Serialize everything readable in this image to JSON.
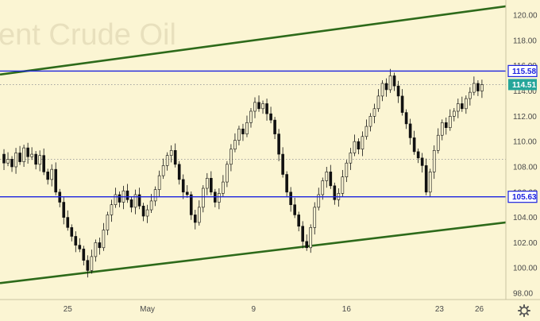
{
  "chart_data": {
    "type": "candlestick",
    "watermark": "ent Crude Oil",
    "y_axis": {
      "range": [
        97.5,
        121.2
      ],
      "ticks": [
        98,
        100,
        102,
        104,
        106,
        108,
        110,
        112,
        114,
        116,
        118,
        120
      ],
      "tick_labels": [
        "98.00",
        "100.00",
        "102.00",
        "104.00",
        "106.00",
        "108.00",
        "110.00",
        "112.00",
        "114.00",
        "116.00",
        "118.00",
        "120.00"
      ]
    },
    "x_axis": {
      "range_days": [
        -5.1,
        33.0
      ],
      "ticks": [
        {
          "label": "25",
          "day": 0
        },
        {
          "label": "May",
          "day": 6
        },
        {
          "label": "9",
          "day": 14
        },
        {
          "label": "16",
          "day": 21
        },
        {
          "label": "23",
          "day": 28
        },
        {
          "label": "26",
          "day": 31
        }
      ]
    },
    "levels": [
      {
        "value": 115.58,
        "label": "115.58",
        "color": "#1b22e0"
      },
      {
        "value": 105.63,
        "label": "105.63",
        "color": "#1b22e0"
      }
    ],
    "dotted_levels": [
      108.6,
      114.51
    ],
    "last_price": {
      "value": 114.51,
      "label": "114.51",
      "color": "#26a69a"
    },
    "trend_lines": [
      {
        "color": "#2d6a1a",
        "points": [
          [
            -5.1,
            115.3
          ],
          [
            33.0,
            120.7
          ]
        ]
      },
      {
        "color": "#2d6a1a",
        "points": [
          [
            -5.1,
            98.8
          ],
          [
            33.0,
            103.6
          ]
        ]
      }
    ],
    "price_path": [
      [
        -5.1,
        109.0
      ],
      [
        -4.8,
        108.3
      ],
      [
        -4.5,
        108.6
      ],
      [
        -4.2,
        108.0
      ],
      [
        -3.9,
        109.1
      ],
      [
        -3.6,
        108.4
      ],
      [
        -3.3,
        109.5
      ],
      [
        -3.0,
        108.8
      ],
      [
        -2.7,
        109.0
      ],
      [
        -2.4,
        108.2
      ],
      [
        -2.1,
        108.9
      ],
      [
        -1.8,
        107.6
      ],
      [
        -1.5,
        107.0
      ],
      [
        -1.2,
        107.8
      ],
      [
        -0.9,
        106.0
      ],
      [
        -0.6,
        105.2
      ],
      [
        -0.3,
        104.0
      ],
      [
        0.0,
        103.2
      ],
      [
        0.3,
        102.5
      ],
      [
        0.6,
        101.8
      ],
      [
        0.9,
        101.5
      ],
      [
        1.2,
        100.6
      ],
      [
        1.5,
        99.8
      ],
      [
        1.8,
        100.9
      ],
      [
        2.1,
        102.0
      ],
      [
        2.4,
        101.6
      ],
      [
        2.7,
        103.0
      ],
      [
        3.0,
        104.2
      ],
      [
        3.3,
        105.0
      ],
      [
        3.6,
        105.8
      ],
      [
        3.9,
        105.2
      ],
      [
        4.2,
        106.1
      ],
      [
        4.5,
        105.4
      ],
      [
        4.8,
        104.8
      ],
      [
        5.1,
        105.8
      ],
      [
        5.4,
        104.9
      ],
      [
        5.7,
        104.1
      ],
      [
        6.0,
        104.6
      ],
      [
        6.3,
        105.3
      ],
      [
        6.6,
        106.2
      ],
      [
        6.9,
        107.3
      ],
      [
        7.2,
        108.1
      ],
      [
        7.5,
        108.9
      ],
      [
        7.8,
        109.3
      ],
      [
        8.1,
        108.2
      ],
      [
        8.4,
        107.0
      ],
      [
        8.7,
        106.0
      ],
      [
        9.0,
        105.8
      ],
      [
        9.3,
        104.2
      ],
      [
        9.6,
        103.6
      ],
      [
        9.9,
        104.8
      ],
      [
        10.2,
        106.3
      ],
      [
        10.5,
        107.1
      ],
      [
        10.8,
        106.0
      ],
      [
        11.1,
        105.2
      ],
      [
        11.4,
        105.9
      ],
      [
        11.7,
        106.8
      ],
      [
        12.0,
        108.2
      ],
      [
        12.3,
        109.4
      ],
      [
        12.6,
        110.1
      ],
      [
        12.9,
        111.0
      ],
      [
        13.2,
        110.6
      ],
      [
        13.5,
        111.5
      ],
      [
        13.8,
        112.4
      ],
      [
        14.1,
        113.1
      ],
      [
        14.4,
        112.6
      ],
      [
        14.7,
        113.0
      ],
      [
        15.0,
        112.2
      ],
      [
        15.3,
        111.7
      ],
      [
        15.6,
        110.6
      ],
      [
        15.9,
        109.0
      ],
      [
        16.2,
        107.4
      ],
      [
        16.5,
        106.0
      ],
      [
        16.8,
        105.0
      ],
      [
        17.1,
        104.2
      ],
      [
        17.4,
        103.3
      ],
      [
        17.7,
        102.1
      ],
      [
        18.0,
        101.6
      ],
      [
        18.3,
        103.2
      ],
      [
        18.6,
        104.8
      ],
      [
        18.9,
        105.8
      ],
      [
        19.2,
        106.9
      ],
      [
        19.5,
        107.6
      ],
      [
        19.8,
        106.5
      ],
      [
        20.1,
        105.4
      ],
      [
        20.4,
        105.9
      ],
      [
        20.7,
        107.2
      ],
      [
        21.0,
        108.3
      ],
      [
        21.3,
        109.1
      ],
      [
        21.6,
        110.0
      ],
      [
        21.9,
        109.4
      ],
      [
        22.2,
        110.4
      ],
      [
        22.5,
        111.2
      ],
      [
        22.8,
        112.0
      ],
      [
        23.1,
        112.6
      ],
      [
        23.4,
        113.6
      ],
      [
        23.7,
        114.6
      ],
      [
        24.0,
        114.1
      ],
      [
        24.3,
        115.2
      ],
      [
        24.6,
        114.4
      ],
      [
        24.9,
        113.6
      ],
      [
        25.2,
        112.3
      ],
      [
        25.5,
        111.4
      ],
      [
        25.8,
        110.3
      ],
      [
        26.1,
        109.2
      ],
      [
        26.4,
        108.7
      ],
      [
        26.7,
        108.1
      ],
      [
        27.0,
        106.0
      ],
      [
        27.3,
        107.6
      ],
      [
        27.6,
        109.3
      ],
      [
        27.9,
        110.5
      ],
      [
        28.2,
        111.5
      ],
      [
        28.5,
        111.1
      ],
      [
        28.8,
        112.0
      ],
      [
        29.1,
        112.4
      ],
      [
        29.4,
        113.0
      ],
      [
        29.7,
        112.6
      ],
      [
        30.0,
        113.4
      ],
      [
        30.3,
        113.9
      ],
      [
        30.6,
        114.6
      ],
      [
        30.9,
        114.0
      ],
      [
        31.2,
        114.5
      ]
    ]
  },
  "toolbar": {
    "settings_icon": "gear-icon"
  }
}
